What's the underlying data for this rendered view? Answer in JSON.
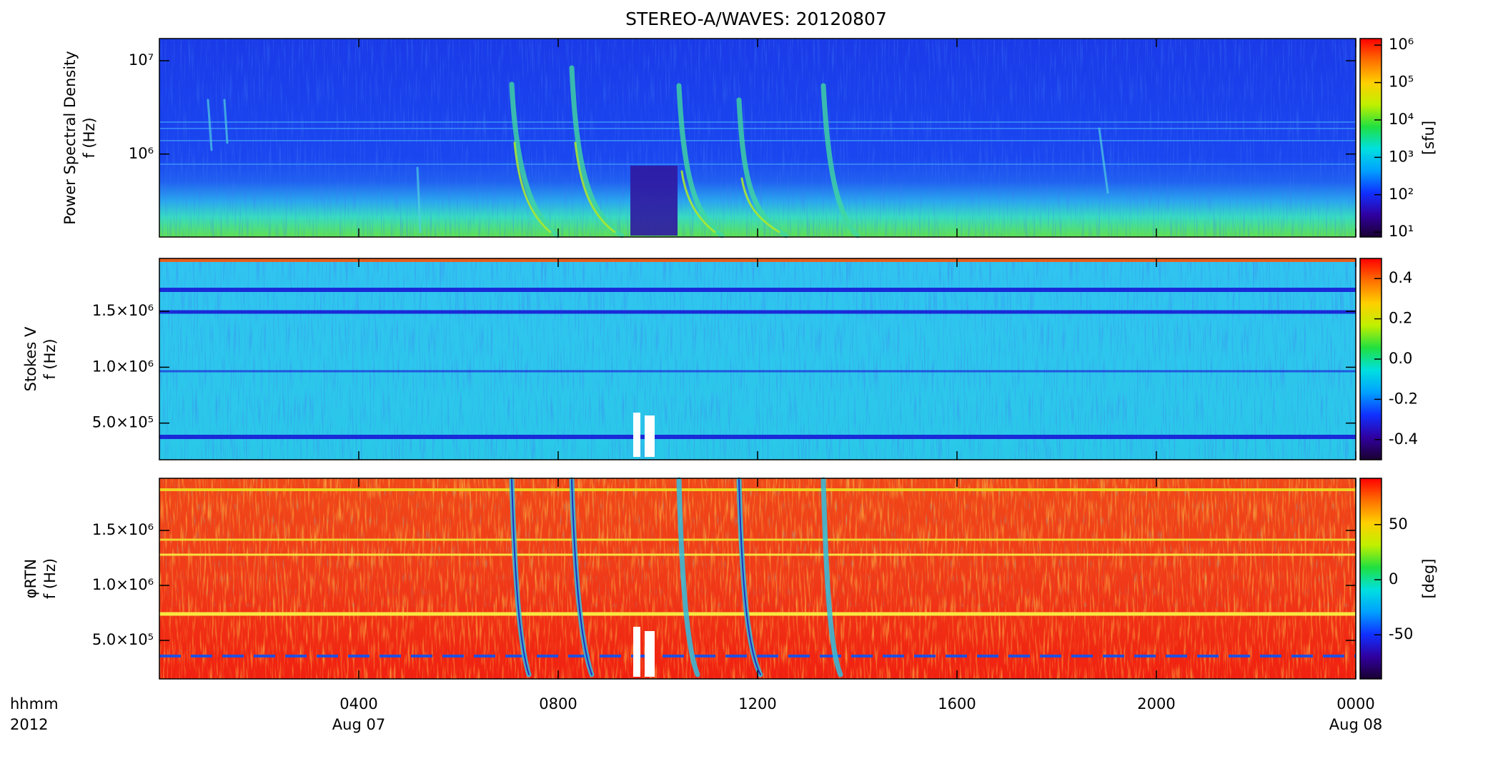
{
  "title": "STEREO-A/WAVES: 20120807",
  "xaxis": {
    "xlim": [
      0,
      24
    ],
    "xticks": [
      {
        "value": 4,
        "label": "0400"
      },
      {
        "value": 8,
        "label": "0800"
      },
      {
        "value": 12,
        "label": "1200"
      },
      {
        "value": 16,
        "label": "1600"
      },
      {
        "value": 20,
        "label": "2000"
      },
      {
        "value": 24,
        "label": "0000"
      }
    ],
    "date_labels": [
      {
        "value": 4,
        "label": "Aug 07"
      },
      {
        "value": 24,
        "label": "Aug 08"
      }
    ],
    "unit_labels": [
      "hhmm",
      "2012"
    ]
  },
  "colormap": [
    "#1a0030",
    "#3000a0",
    "#1030ff",
    "#00a0ff",
    "#00e0e0",
    "#20e040",
    "#c0f000",
    "#ffd000",
    "#ff7000",
    "#ff0000"
  ],
  "chart_data": [
    {
      "type": "spectrogram",
      "ylabel": [
        "Power Spectral Density",
        "f (Hz)"
      ],
      "ylog": true,
      "ylim": [
        129000,
        17300000
      ],
      "yticks": [
        {
          "value": 1000000,
          "label": "10⁶"
        },
        {
          "value": 10000000,
          "label": "10⁷"
        }
      ],
      "clog": true,
      "clim": [
        7.4,
        1500000
      ],
      "cticks": [
        {
          "value": 10,
          "label": "10¹"
        },
        {
          "value": 100,
          "label": "10²"
        },
        {
          "value": 1000,
          "label": "10³"
        },
        {
          "value": 10000,
          "label": "10⁴"
        },
        {
          "value": 100000,
          "label": "10⁵"
        },
        {
          "value": 1000000,
          "label": "10⁶"
        }
      ],
      "clabel": "[sfu]"
    },
    {
      "type": "spectrogram",
      "ylabel": [
        "Stokes V",
        "f (Hz)"
      ],
      "ylog": false,
      "ylim": [
        172000,
        1974000
      ],
      "yticks": [
        {
          "value": 500000,
          "label": "5.0×10⁵"
        },
        {
          "value": 1000000,
          "label": "1.0×10⁶"
        },
        {
          "value": 1500000,
          "label": "1.5×10⁶"
        }
      ],
      "clog": false,
      "clim": [
        -0.5,
        0.5
      ],
      "cticks": [
        -0.4,
        -0.2,
        {
          "value": 0,
          "label": "0.0"
        },
        0.2,
        0.4
      ]
    },
    {
      "type": "spectrogram",
      "ylabel": [
        "φRTN",
        "f (Hz)"
      ],
      "ylog": false,
      "ylim": [
        150000,
        1974000
      ],
      "yticks": [
        {
          "value": 500000,
          "label": "5.0×10⁵"
        },
        {
          "value": 1000000,
          "label": "1.0×10⁶"
        },
        {
          "value": 1500000,
          "label": "1.5×10⁶"
        }
      ],
      "clog": false,
      "clim": [
        -90,
        92
      ],
      "cticks": [
        -50,
        0,
        50
      ],
      "clabel": "[deg]"
    }
  ]
}
